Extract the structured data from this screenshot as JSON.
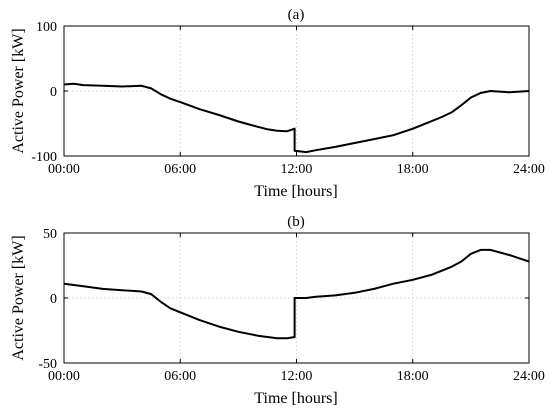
{
  "chart_data": [
    {
      "type": "line",
      "title": "(a)",
      "xlabel": "Time [hours]",
      "ylabel": "Active Power [kW]",
      "xlim": [
        0,
        24
      ],
      "ylim": [
        -100,
        100
      ],
      "xticks": [
        0,
        6,
        12,
        18,
        24
      ],
      "xtick_labels": [
        "00:00",
        "06:00",
        "12:00",
        "18:00",
        "24:00"
      ],
      "yticks": [
        -100,
        0,
        100
      ],
      "ytick_labels": [
        "-100",
        "0",
        "100"
      ],
      "grid": true,
      "series": [
        {
          "x": [
            0,
            0.5,
            1,
            2,
            3,
            4,
            4.5,
            5,
            5.5,
            6,
            7,
            8,
            9,
            10,
            10.5,
            11,
            11.5,
            11.9,
            11.9,
            12.5,
            13,
            14,
            15,
            16,
            17,
            18,
            19,
            19.5,
            20,
            20.5,
            21,
            21.5,
            22,
            23,
            24
          ],
          "values": [
            10,
            11,
            9,
            8,
            7,
            8,
            4,
            -5,
            -12,
            -17,
            -28,
            -37,
            -47,
            -55,
            -59,
            -61,
            -62,
            -58,
            -92,
            -94,
            -91,
            -86,
            -80,
            -74,
            -68,
            -58,
            -46,
            -40,
            -33,
            -22,
            -10,
            -3,
            0,
            -2,
            0
          ]
        }
      ]
    },
    {
      "type": "line",
      "title": "(b)",
      "xlabel": "Time [hours]",
      "ylabel": "Active Power [kW]",
      "xlim": [
        0,
        24
      ],
      "ylim": [
        -50,
        50
      ],
      "xticks": [
        0,
        6,
        12,
        18,
        24
      ],
      "xtick_labels": [
        "00:00",
        "06:00",
        "12:00",
        "18:00",
        "24:00"
      ],
      "yticks": [
        -50,
        0,
        50
      ],
      "ytick_labels": [
        "-50",
        "0",
        "50"
      ],
      "grid": true,
      "series": [
        {
          "x": [
            0,
            0.5,
            1,
            2,
            3,
            4,
            4.5,
            5,
            5.5,
            6,
            7,
            8,
            9,
            10,
            10.5,
            11,
            11.5,
            11.9,
            11.9,
            12.5,
            13,
            14,
            15,
            16,
            17,
            18,
            19,
            20,
            20.5,
            21,
            21.5,
            22,
            23,
            24
          ],
          "values": [
            11,
            10,
            9,
            7,
            6,
            5,
            3,
            -3,
            -8,
            -11,
            -17,
            -22,
            -26,
            -29,
            -30,
            -31,
            -31,
            -30,
            0,
            0,
            1,
            2,
            4,
            7,
            11,
            14,
            18,
            24,
            28,
            34,
            37,
            37,
            33,
            28
          ]
        }
      ]
    }
  ]
}
